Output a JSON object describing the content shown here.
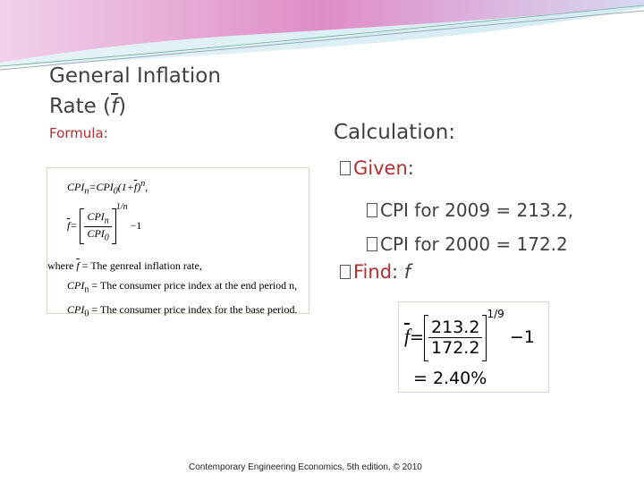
{
  "header": {
    "title_line1": "General Inflation",
    "title_line2_start": "Rate (",
    "title_symbol": "f",
    "title_line2_end": ")"
  },
  "formula": {
    "label": "Formula:",
    "eq1": {
      "a": "CPI",
      "a_sub": "n",
      "b": "=CPI",
      "b_sub": "0",
      "c": "(1+",
      "sym": "f",
      "d": ")",
      "exp": "n",
      "end": ","
    },
    "eq2": {
      "sym": "f",
      "eq": "=",
      "num": "CPI",
      "num_sub": "n",
      "den": "CPI",
      "den_sub": "0",
      "exp": "1/n",
      "tail": "−1"
    },
    "where": {
      "word": "where",
      "l1_sym": "f",
      "l1_text": "= The genreal inflation rate,",
      "l2_sym": "CPI",
      "l2_sub": "n",
      "l2_text": "= The consumer price index at the end period n,",
      "l3_sym": "CPI",
      "l3_sub": "0",
      "l3_text": "= The consumer price index for the base period."
    }
  },
  "calculation": {
    "heading": "Calculation:",
    "given": {
      "label": "Given",
      "colon": ":"
    },
    "items": [
      "CPI for 2009 = 213.2,",
      "CPI for 2000 = 172.2"
    ],
    "find": {
      "label": "Find",
      "colon": ":",
      "symbol": "f"
    },
    "result": {
      "sym": "f",
      "eq": "=",
      "num": "213.2",
      "den": "172.2",
      "exp": "1/9",
      "tail": "−1",
      "answer": "= 2.40%"
    }
  },
  "footer": {
    "text": "Contemporary Engineering Economics, 5th edition, © 2010"
  }
}
